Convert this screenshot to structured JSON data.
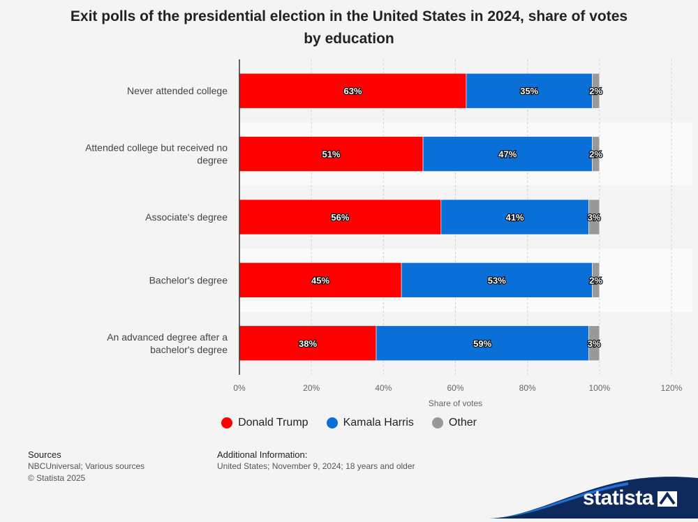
{
  "title": "Exit polls of the presidential election in the United States in 2024, share of votes by education",
  "colors": {
    "trump": "#ff0000",
    "harris": "#0a6fd6",
    "other": "#999999"
  },
  "chart_data": {
    "type": "bar",
    "orientation": "horizontal",
    "stacked": true,
    "categories": [
      "Never attended college",
      "Attended college but received no degree",
      "Associate's degree",
      "Bachelor's degree",
      "An advanced degree after a bachelor's degree"
    ],
    "series": [
      {
        "name": "Donald Trump",
        "values": [
          63,
          51,
          56,
          45,
          38
        ],
        "color": "#ff0000"
      },
      {
        "name": "Kamala Harris",
        "values": [
          35,
          47,
          41,
          53,
          59
        ],
        "color": "#0a6fd6"
      },
      {
        "name": "Other",
        "values": [
          2,
          2,
          3,
          2,
          3
        ],
        "color": "#999999"
      }
    ],
    "xlabel": "Share of votes",
    "ylabel": "",
    "xlim": [
      0,
      120
    ],
    "xticks": [
      "0%",
      "20%",
      "40%",
      "60%",
      "80%",
      "100%",
      "120%"
    ],
    "grid": true,
    "legend_position": "bottom"
  },
  "footer": {
    "sources_heading": "Sources",
    "sources_text": "NBCUniversal; Various sources",
    "copyright": "© Statista 2025",
    "additional_heading": "Additional Information:",
    "additional_text": "United States; November 9, 2024; 18 years and older"
  },
  "brand": "statista"
}
